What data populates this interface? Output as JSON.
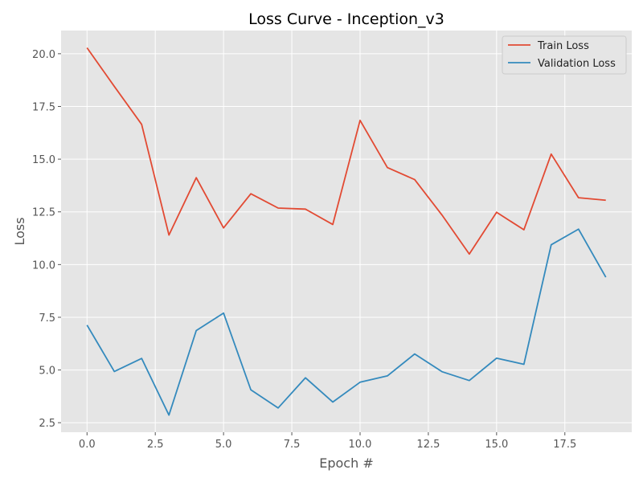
{
  "chart_data": {
    "type": "line",
    "title": "Loss Curve - Inception_v3",
    "xlabel": "Epoch #",
    "ylabel": "Loss",
    "x": [
      0,
      1,
      2,
      3,
      4,
      5,
      6,
      7,
      8,
      9,
      10,
      11,
      12,
      13,
      14,
      15,
      16,
      17,
      18,
      19
    ],
    "xlim": [
      -0.95,
      19.95
    ],
    "ylim": [
      2.05,
      21.1
    ],
    "xticks": [
      0.0,
      2.5,
      5.0,
      7.5,
      10.0,
      12.5,
      15.0,
      17.5
    ],
    "xtick_labels": [
      "0.0",
      "2.5",
      "5.0",
      "7.5",
      "10.0",
      "12.5",
      "15.0",
      "17.5"
    ],
    "yticks": [
      2.5,
      5.0,
      7.5,
      10.0,
      12.5,
      15.0,
      17.5,
      20.0
    ],
    "ytick_labels": [
      "2.5",
      "5.0",
      "7.5",
      "10.0",
      "12.5",
      "15.0",
      "17.5",
      "20.0"
    ],
    "grid": true,
    "legend_position": "top-right",
    "series": [
      {
        "name": "Train Loss",
        "color": "#E24A33",
        "values": [
          20.28,
          18.45,
          16.65,
          11.4,
          14.12,
          11.74,
          13.36,
          12.68,
          12.63,
          11.9,
          16.84,
          14.6,
          14.03,
          12.35,
          10.5,
          12.48,
          11.65,
          15.24,
          13.17,
          13.05
        ]
      },
      {
        "name": "Validation Loss",
        "color": "#348ABD",
        "values": [
          7.13,
          4.93,
          5.55,
          2.86,
          6.87,
          7.7,
          4.06,
          3.2,
          4.63,
          3.48,
          4.42,
          4.72,
          5.76,
          4.92,
          4.5,
          5.56,
          5.27,
          10.94,
          11.68,
          9.4
        ]
      }
    ]
  }
}
